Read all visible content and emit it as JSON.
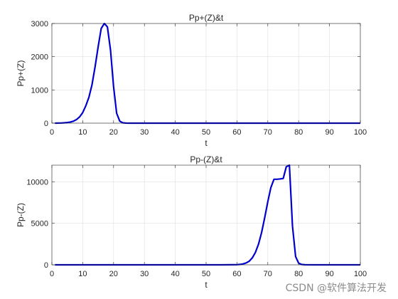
{
  "watermark": "CSDN @软件算法开发",
  "chart_data": [
    {
      "type": "line",
      "title": "Pp+(Z)&t",
      "xlabel": "t",
      "ylabel": "Pp+(Z)",
      "xlim": [
        0,
        100
      ],
      "ylim": [
        0,
        3000
      ],
      "xticks": [
        0,
        10,
        20,
        30,
        40,
        50,
        60,
        70,
        80,
        90,
        100
      ],
      "yticks": [
        0,
        1000,
        2000,
        3000
      ],
      "grid": true,
      "color": "#0000cd",
      "x": [
        1,
        2,
        3,
        4,
        5,
        6,
        7,
        8,
        9,
        10,
        11,
        12,
        13,
        14,
        15,
        16,
        17,
        18,
        19,
        20,
        21,
        22,
        23,
        24,
        25,
        30,
        40,
        50,
        60,
        70,
        80,
        90,
        100
      ],
      "y": [
        0,
        2,
        5,
        10,
        20,
        35,
        60,
        110,
        190,
        320,
        520,
        780,
        1150,
        1700,
        2300,
        2850,
        3000,
        2900,
        2200,
        1100,
        300,
        60,
        10,
        2,
        0,
        0,
        0,
        0,
        0,
        0,
        0,
        0,
        0
      ]
    },
    {
      "type": "line",
      "title": "Pp-(Z)&t",
      "xlabel": "t",
      "ylabel": "Pp-(Z)",
      "xlim": [
        0,
        100
      ],
      "ylim": [
        0,
        12000
      ],
      "xticks": [
        0,
        10,
        20,
        30,
        40,
        50,
        60,
        70,
        80,
        90,
        100
      ],
      "yticks": [
        0,
        5000,
        10000
      ],
      "grid": true,
      "color": "#0000cd",
      "x": [
        1,
        10,
        20,
        30,
        40,
        50,
        55,
        58,
        60,
        61,
        62,
        63,
        64,
        65,
        66,
        67,
        68,
        69,
        70,
        71,
        72,
        73,
        74,
        75,
        76,
        77,
        78,
        79,
        80,
        81,
        82,
        85,
        90,
        100
      ],
      "y": [
        0,
        0,
        0,
        0,
        0,
        0,
        0,
        5,
        20,
        50,
        110,
        230,
        450,
        850,
        1500,
        2500,
        3900,
        5700,
        7600,
        9300,
        10300,
        10300,
        10350,
        10400,
        11800,
        12000,
        4700,
        1000,
        200,
        40,
        10,
        0,
        0,
        0
      ]
    }
  ]
}
